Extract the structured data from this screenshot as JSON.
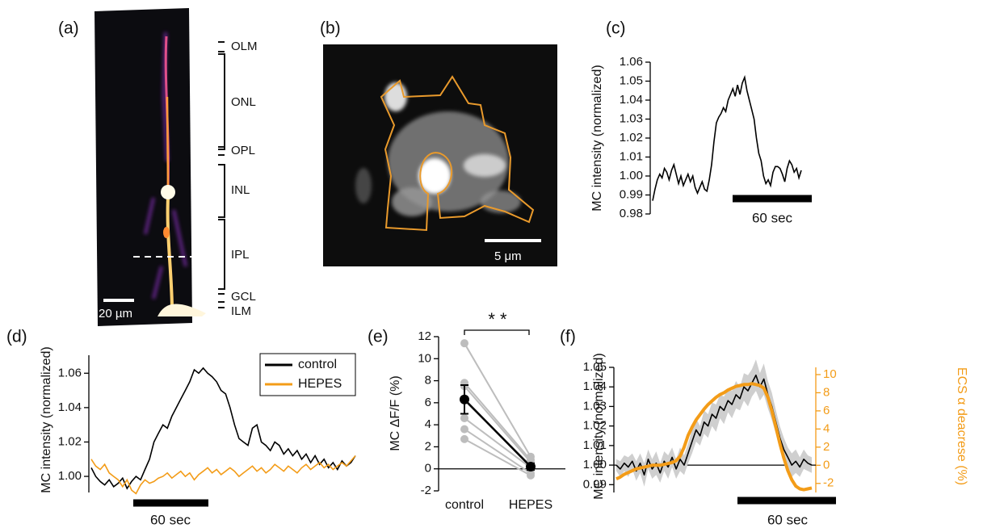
{
  "image_a": {
    "panel_label": "(a)",
    "scale_bar": "20 µm",
    "layers": [
      "OLM",
      "ONL",
      "OPL",
      "INL",
      "IPL",
      "GCL",
      "ILM"
    ]
  },
  "image_b": {
    "panel_label": "(b)",
    "scale_bar": "5 μm"
  },
  "chart_data": [
    {
      "type": "line",
      "panel_label": "(c)",
      "y_label": "MC intensity (normalized)",
      "scale_bar": "60 sec",
      "ylim": [
        0.98,
        1.06
      ],
      "yticks": [
        0.98,
        0.99,
        {
          "value": 1,
          "label": "1.00"
        },
        1.01,
        1.02,
        1.03,
        1.04,
        1.05,
        1.06
      ],
      "series": [
        {
          "color": "#000000",
          "values": [
            0.987,
            0.993,
            0.998,
            1.001,
            0.999,
            1.004,
            1.002,
            0.998,
            1.003,
            1.006,
            1.001,
            0.996,
            1.0,
            0.995,
            0.998,
            1.001,
            0.997,
            1.0,
            0.994,
            0.991,
            0.994,
            0.997,
            0.993,
            0.992,
            0.998,
            1.006,
            1.018,
            1.028,
            1.031,
            1.033,
            1.036,
            1.034,
            1.04,
            1.043,
            1.046,
            1.042,
            1.048,
            1.043,
            1.049,
            1.052,
            1.045,
            1.04,
            1.035,
            1.03,
            1.02,
            1.012,
            1.008,
            1.0,
            0.996,
            0.998,
            0.995,
            1.002,
            1.005,
            1.005,
            1.004,
            1.001,
            0.997,
            1.004,
            1.008,
            1.006,
            1.002,
            1.004,
            0.999,
            1.003
          ]
        }
      ]
    },
    {
      "type": "line",
      "panel_label": "(d)",
      "y_label": "MC intensity (normalized)",
      "scale_bar": "60 sec",
      "ylim": [
        0.985,
        1.07
      ],
      "yticks": [
        {
          "value": 1,
          "label": "1.00"
        },
        1.02,
        1.04,
        1.06
      ],
      "legend": "upper right",
      "series": [
        {
          "name": "control",
          "color": "#000000",
          "values": [
            1.005,
            1.0,
            0.997,
            0.995,
            0.998,
            0.994,
            0.996,
            0.999,
            0.993,
            0.997,
            1.0,
            0.998,
            1.004,
            1.01,
            1.02,
            1.025,
            1.03,
            1.028,
            1.035,
            1.04,
            1.045,
            1.05,
            1.055,
            1.062,
            1.06,
            1.063,
            1.06,
            1.058,
            1.055,
            1.05,
            1.048,
            1.04,
            1.03,
            1.022,
            1.02,
            1.018,
            1.028,
            1.03,
            1.02,
            1.018,
            1.015,
            1.02,
            1.018,
            1.013,
            1.016,
            1.012,
            1.015,
            1.01,
            1.013,
            1.008,
            1.012,
            1.007,
            1.01,
            1.005,
            1.008,
            1.004,
            1.009,
            1.006,
            1.008,
            1.012
          ]
        },
        {
          "name": "HEPES",
          "color": "#f39c18",
          "values": [
            1.01,
            1.006,
            1.004,
            1.007,
            1.002,
            1.0,
            0.998,
            0.994,
            0.998,
            0.992,
            0.99,
            0.995,
            0.998,
            0.996,
            0.997,
            0.999,
            1.0,
            1.002,
            0.999,
            1.001,
            1.003,
            1.0,
            1.002,
            0.998,
            1.001,
            1.003,
            1.005,
            1.002,
            1.004,
            1.001,
            1.003,
            1.005,
            1.003,
            1.0,
            1.002,
            1.004,
            1.006,
            1.003,
            1.005,
            1.002,
            1.004,
            1.007,
            1.005,
            1.003,
            1.006,
            1.004,
            1.002,
            1.005,
            1.007,
            1.004,
            1.006,
            1.008,
            1.005,
            1.007,
            1.004,
            1.006,
            1.008,
            1.006,
            1.009,
            1.012
          ]
        }
      ]
    },
    {
      "type": "paired",
      "panel_label": "(e)",
      "y_label": "MC  ΔF/F (%)",
      "annotation": "* *",
      "categories": [
        "control",
        "HEPES"
      ],
      "ylim": [
        -2,
        12
      ],
      "yticks": [
        -2,
        0,
        2,
        4,
        6,
        8,
        10,
        12
      ],
      "pair_color": "#bdbdbd",
      "mean_color": "#000000",
      "pairs": [
        [
          11.4,
          1.1
        ],
        [
          7.8,
          0.8
        ],
        [
          7.5,
          0.6
        ],
        [
          6.2,
          0.3
        ],
        [
          4.6,
          0.1
        ],
        [
          3.6,
          -0.4
        ],
        [
          2.7,
          -0.6
        ]
      ],
      "mean": [
        6.3,
        0.2
      ],
      "error": [
        1.3,
        0.3
      ]
    },
    {
      "type": "dual",
      "panel_label": "(f)",
      "y_label": "MC intensity (normalized)",
      "y2_label": "ECS α deacrese (%)",
      "scale_bar": "60 sec",
      "ylim": [
        0.986,
        1.05
      ],
      "yticks": [
        0.99,
        {
          "value": 1,
          "label": "1.00"
        },
        1.01,
        1.02,
        1.03,
        1.04,
        1.05
      ],
      "y2lim": [
        -3,
        10.8
      ],
      "y2ticks": [
        -2,
        0,
        2,
        4,
        6,
        8,
        10
      ],
      "series": [
        {
          "color": "#000000",
          "band_color": "#cfcfcf",
          "values": [
            1.0,
            0.998,
            1.001,
            0.999,
            1.002,
            0.997,
            1.001,
            0.995,
            1.003,
            0.998,
            1.001,
            0.996,
            1.002,
            0.999,
            1.004,
            0.998,
            1.003,
            1.0,
            1.006,
            1.012,
            1.018,
            1.015,
            1.022,
            1.02,
            1.026,
            1.024,
            1.03,
            1.028,
            1.033,
            1.031,
            1.036,
            1.034,
            1.04,
            1.038,
            1.042,
            1.046,
            1.04,
            1.044,
            1.036,
            1.03,
            1.022,
            1.014,
            1.008,
            1.004,
            1.0,
            1.002,
            0.999,
            1.003,
            1.001,
            1.0
          ],
          "errors": [
            0.003,
            0.004,
            0.004,
            0.005,
            0.004,
            0.005,
            0.005,
            0.006,
            0.005,
            0.005,
            0.006,
            0.005,
            0.005,
            0.006,
            0.005,
            0.005,
            0.006,
            0.005,
            0.005,
            0.006,
            0.006,
            0.005,
            0.006,
            0.006,
            0.006,
            0.007,
            0.006,
            0.007,
            0.006,
            0.007,
            0.007,
            0.006,
            0.007,
            0.008,
            0.007,
            0.008,
            0.007,
            0.008,
            0.007,
            0.007,
            0.006,
            0.006,
            0.006,
            0.005,
            0.006,
            0.006,
            0.005,
            0.005,
            0.004,
            0.004
          ]
        },
        {
          "color": "#f39c18",
          "axis": "y2",
          "values": [
            -1.5,
            -1.3,
            -1.0,
            -0.8,
            -0.6,
            -0.4,
            -0.3,
            -0.2,
            -0.1,
            0,
            0,
            0,
            0.1,
            0.2,
            0.3,
            0.5,
            1.0,
            2.0,
            3.3,
            4.2,
            5.0,
            5.6,
            6.2,
            6.7,
            7.1,
            7.5,
            7.8,
            8.0,
            8.3,
            8.5,
            8.7,
            8.8,
            8.9,
            8.9,
            9.0,
            8.9,
            8.8,
            8.5,
            7.5,
            6.0,
            4.2,
            2.4,
            0.8,
            -0.6,
            -1.6,
            -2.3,
            -2.6,
            -2.7,
            -2.6,
            -2.5
          ]
        }
      ]
    }
  ]
}
